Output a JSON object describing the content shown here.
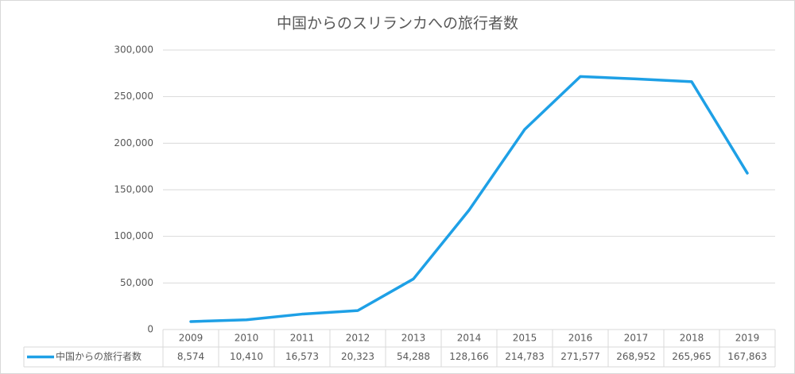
{
  "chart_data": {
    "type": "line",
    "title": "中国からのスリランカへの旅行者数",
    "categories": [
      "2009",
      "2010",
      "2011",
      "2012",
      "2013",
      "2014",
      "2015",
      "2016",
      "2017",
      "2018",
      "2019"
    ],
    "series": [
      {
        "name": "中国からの旅行者数",
        "color": "#1ea0e6",
        "values": [
          8574,
          10410,
          16573,
          20323,
          54288,
          128166,
          214783,
          271577,
          268952,
          265965,
          167863
        ],
        "value_labels": [
          "8,574",
          "10,410",
          "16,573",
          "20,323",
          "54,288",
          "128,166",
          "214,783",
          "271,577",
          "268,952",
          "265,965",
          "167,863"
        ]
      }
    ],
    "ylim": [
      0,
      300000
    ],
    "yticks": [
      0,
      {
        "value": 50000,
        "label": "50,000"
      },
      {
        "value": 100000,
        "label": "100,000"
      },
      {
        "value": 150000,
        "label": "150,000"
      },
      {
        "value": 200000,
        "label": "200,000"
      },
      {
        "value": 250000,
        "label": "250,000"
      },
      {
        "value": 300000,
        "label": "300,000"
      }
    ],
    "grid": true
  }
}
